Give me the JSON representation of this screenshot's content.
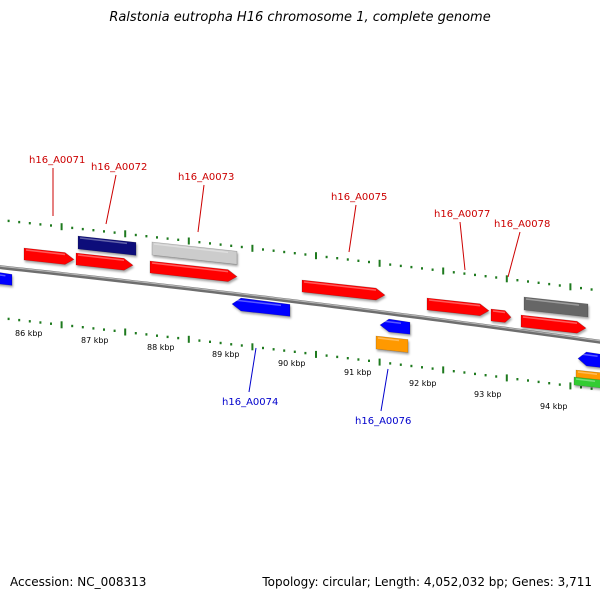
{
  "title": "Ralstonia eutropha H16 chromosome 1, complete genome",
  "footer": {
    "accession": "Accession: NC_008313",
    "summary": "Topology: circular; Length: 4,052,032 bp; Genes: 3,711"
  },
  "colors": {
    "backbone": "#808080",
    "tick": "#1e7a1e",
    "label_forward": "#cc0000",
    "label_reverse": "#0000cc",
    "red": "#ff0000",
    "navy": "#0a0a7a",
    "lightgray": "#cccccc",
    "darkgray": "#666666",
    "blue": "#0000ff",
    "orange": "#ff9900",
    "green": "#33cc33"
  },
  "kbp_labels": [
    "86 kbp",
    "87 kbp",
    "88 kbp",
    "89 kbp",
    "90 kbp",
    "91 kbp",
    "92 kbp",
    "93 kbp",
    "94 kbp"
  ],
  "gene_labels": [
    {
      "name": "h16_A0071",
      "strand": "forward"
    },
    {
      "name": "h16_A0072",
      "strand": "forward"
    },
    {
      "name": "h16_A0073",
      "strand": "forward"
    },
    {
      "name": "h16_A0075",
      "strand": "forward"
    },
    {
      "name": "h16_A0077",
      "strand": "forward"
    },
    {
      "name": "h16_A0078",
      "strand": "forward"
    },
    {
      "name": "h16_A0074",
      "strand": "reverse"
    },
    {
      "name": "h16_A0076",
      "strand": "reverse"
    }
  ],
  "features": [
    {
      "color": "red",
      "direction": "right"
    },
    {
      "color": "navy",
      "direction": "none"
    },
    {
      "color": "red",
      "direction": "right"
    },
    {
      "color": "lightgray",
      "direction": "none"
    },
    {
      "color": "red",
      "direction": "right"
    },
    {
      "color": "red",
      "direction": "right"
    },
    {
      "color": "red",
      "direction": "right"
    },
    {
      "color": "red",
      "direction": "right"
    },
    {
      "color": "darkgray",
      "direction": "none"
    },
    {
      "color": "red",
      "direction": "right"
    },
    {
      "color": "blue",
      "direction": "left"
    },
    {
      "color": "blue",
      "direction": "left"
    },
    {
      "color": "orange",
      "direction": "none"
    },
    {
      "color": "blue",
      "direction": "left"
    },
    {
      "color": "orange",
      "direction": "none"
    },
    {
      "color": "green",
      "direction": "none"
    },
    {
      "color": "blue",
      "direction": "left"
    }
  ]
}
